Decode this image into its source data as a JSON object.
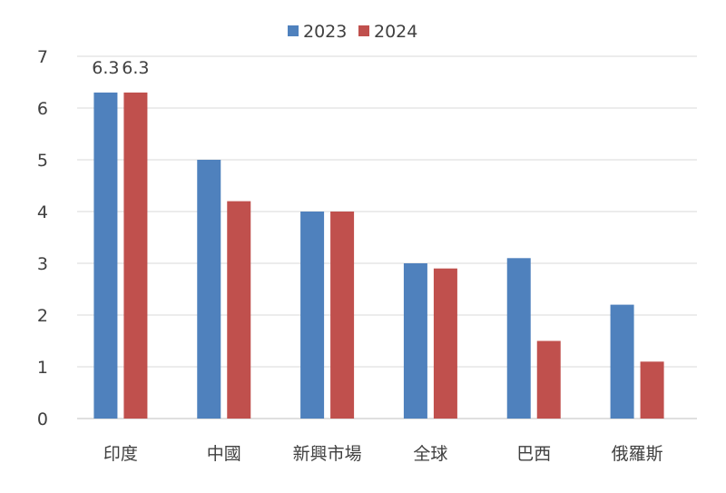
{
  "chart_data": {
    "type": "bar",
    "categories": [
      "印度",
      "中國",
      "新興市場",
      "全球",
      "巴西",
      "俄羅斯"
    ],
    "series": [
      {
        "name": "2023",
        "color": "#4F81BD",
        "values": [
          6.3,
          5.0,
          4.0,
          3.0,
          3.1,
          2.2
        ]
      },
      {
        "name": "2024",
        "color": "#C0504D",
        "values": [
          6.3,
          4.2,
          4.0,
          2.9,
          1.5,
          1.1
        ]
      }
    ],
    "data_labels": [
      {
        "series": 0,
        "category": 0,
        "text": "6.3"
      },
      {
        "series": 1,
        "category": 0,
        "text": "6.3"
      }
    ],
    "yticks": [
      "0",
      "1",
      "2",
      "3",
      "4",
      "5",
      "6",
      "7"
    ],
    "ylim": [
      0,
      7
    ],
    "grid": true,
    "legend": "top-center",
    "title": "",
    "xlabel": "",
    "ylabel": ""
  }
}
